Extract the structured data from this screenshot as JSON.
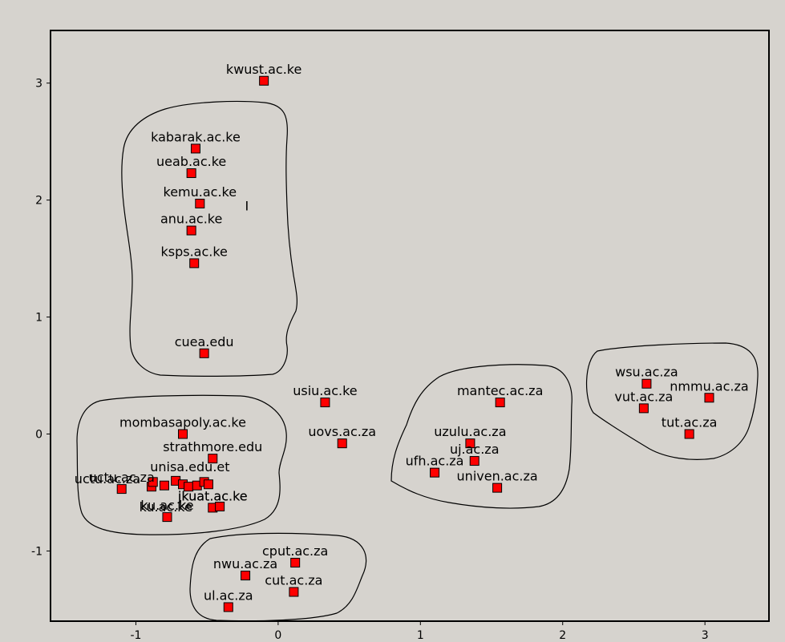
{
  "chart_data": {
    "type": "scatter",
    "title": "",
    "xlabel": "",
    "ylabel": "",
    "xlim": [
      -1.6,
      3.45
    ],
    "ylim": [
      -1.6,
      3.45
    ],
    "grid": false,
    "x_ticks": [
      "-1",
      "0",
      "1",
      "2",
      "3"
    ],
    "x_tick_values": [
      -1,
      0,
      1,
      2,
      3
    ],
    "y_ticks": [
      "-1",
      "0",
      "1",
      "2",
      "3"
    ],
    "y_tick_values": [
      -1,
      0,
      1,
      2,
      3
    ],
    "marker_color": "#ff0000",
    "series": [
      {
        "points": [
          {
            "label": "kwust.ac.ke",
            "x": -0.1,
            "y": 3.02
          },
          {
            "label": "kabarak.ac.ke",
            "x": -0.58,
            "y": 2.44
          },
          {
            "label": "ueab.ac.ke",
            "x": -0.61,
            "y": 2.23
          },
          {
            "label": "kemu.ac.ke",
            "x": -0.55,
            "y": 1.97
          },
          {
            "label": "anu.ac.ke",
            "x": -0.61,
            "y": 1.74
          },
          {
            "label": "ksps.ac.ke",
            "x": -0.59,
            "y": 1.46
          },
          {
            "label": "cuea.edu",
            "x": -0.52,
            "y": 0.69
          },
          {
            "label": "usiu.ac.ke",
            "x": 0.33,
            "y": 0.27
          },
          {
            "label": "uovs.ac.za",
            "x": 0.45,
            "y": -0.08
          },
          {
            "label": "mombasapoly.ac.ke",
            "x": -0.67,
            "y": 0.0
          },
          {
            "label": "strathmore.edu",
            "x": -0.46,
            "y": -0.21
          },
          {
            "label": "uctu.ac.za",
            "x": -1.1,
            "y": -0.47
          },
          {
            "label": "jkuat.ac.ke",
            "x": -0.46,
            "y": -0.63
          },
          {
            "label": "ku.ac.ke",
            "x": -0.78,
            "y": -0.71
          },
          {
            "label": "mantec.ac.za",
            "x": 1.56,
            "y": 0.27
          },
          {
            "label": "uzulu.ac.za",
            "x": 1.35,
            "y": -0.08
          },
          {
            "label": "uj.ac.za",
            "x": 1.38,
            "y": -0.23
          },
          {
            "label": "ufh.ac.za",
            "x": 1.1,
            "y": -0.33
          },
          {
            "label": "univen.ac.za",
            "x": 1.54,
            "y": -0.46
          },
          {
            "label": "wsu.ac.za",
            "x": 2.59,
            "y": 0.43
          },
          {
            "label": "nmmu.ac.za",
            "x": 3.03,
            "y": 0.31
          },
          {
            "label": "vut.ac.za",
            "x": 2.57,
            "y": 0.22
          },
          {
            "label": "tut.ac.za",
            "x": 2.89,
            "y": 0.0
          },
          {
            "label": "cput.ac.za",
            "x": 0.12,
            "y": -1.1
          },
          {
            "label": "nwu.ac.za",
            "x": -0.23,
            "y": -1.21
          },
          {
            "label": "cut.ac.za",
            "x": 0.11,
            "y": -1.35
          },
          {
            "label": "ul.ac.za",
            "x": -0.35,
            "y": -1.48
          },
          {
            "label": "",
            "x": -0.89,
            "y": -0.45
          },
          {
            "label": "",
            "x": -0.88,
            "y": -0.41
          },
          {
            "label": "",
            "x": -0.8,
            "y": -0.44
          },
          {
            "label": "",
            "x": -0.72,
            "y": -0.4
          },
          {
            "label": "",
            "x": -0.67,
            "y": -0.43
          },
          {
            "label": "",
            "x": -0.63,
            "y": -0.45
          },
          {
            "label": "",
            "x": -0.57,
            "y": -0.44
          },
          {
            "label": "",
            "x": -0.52,
            "y": -0.41
          },
          {
            "label": "",
            "x": -0.49,
            "y": -0.43
          },
          {
            "label": "",
            "x": -0.41,
            "y": -0.62
          }
        ]
      }
    ],
    "annotations": [
      {
        "text": "uctu.ac.za",
        "x": -1.2,
        "y": -0.42
      },
      {
        "text": "unisa.edu.et",
        "x": -0.62,
        "y": -0.32
      },
      {
        "text": "jkuat.ac.ke",
        "x": -0.46,
        "y": -0.57
      },
      {
        "text": "ku.ac.ke",
        "x": -0.79,
        "y": -0.66
      },
      {
        "text": "I",
        "x": -0.22,
        "y": 1.91
      }
    ]
  }
}
